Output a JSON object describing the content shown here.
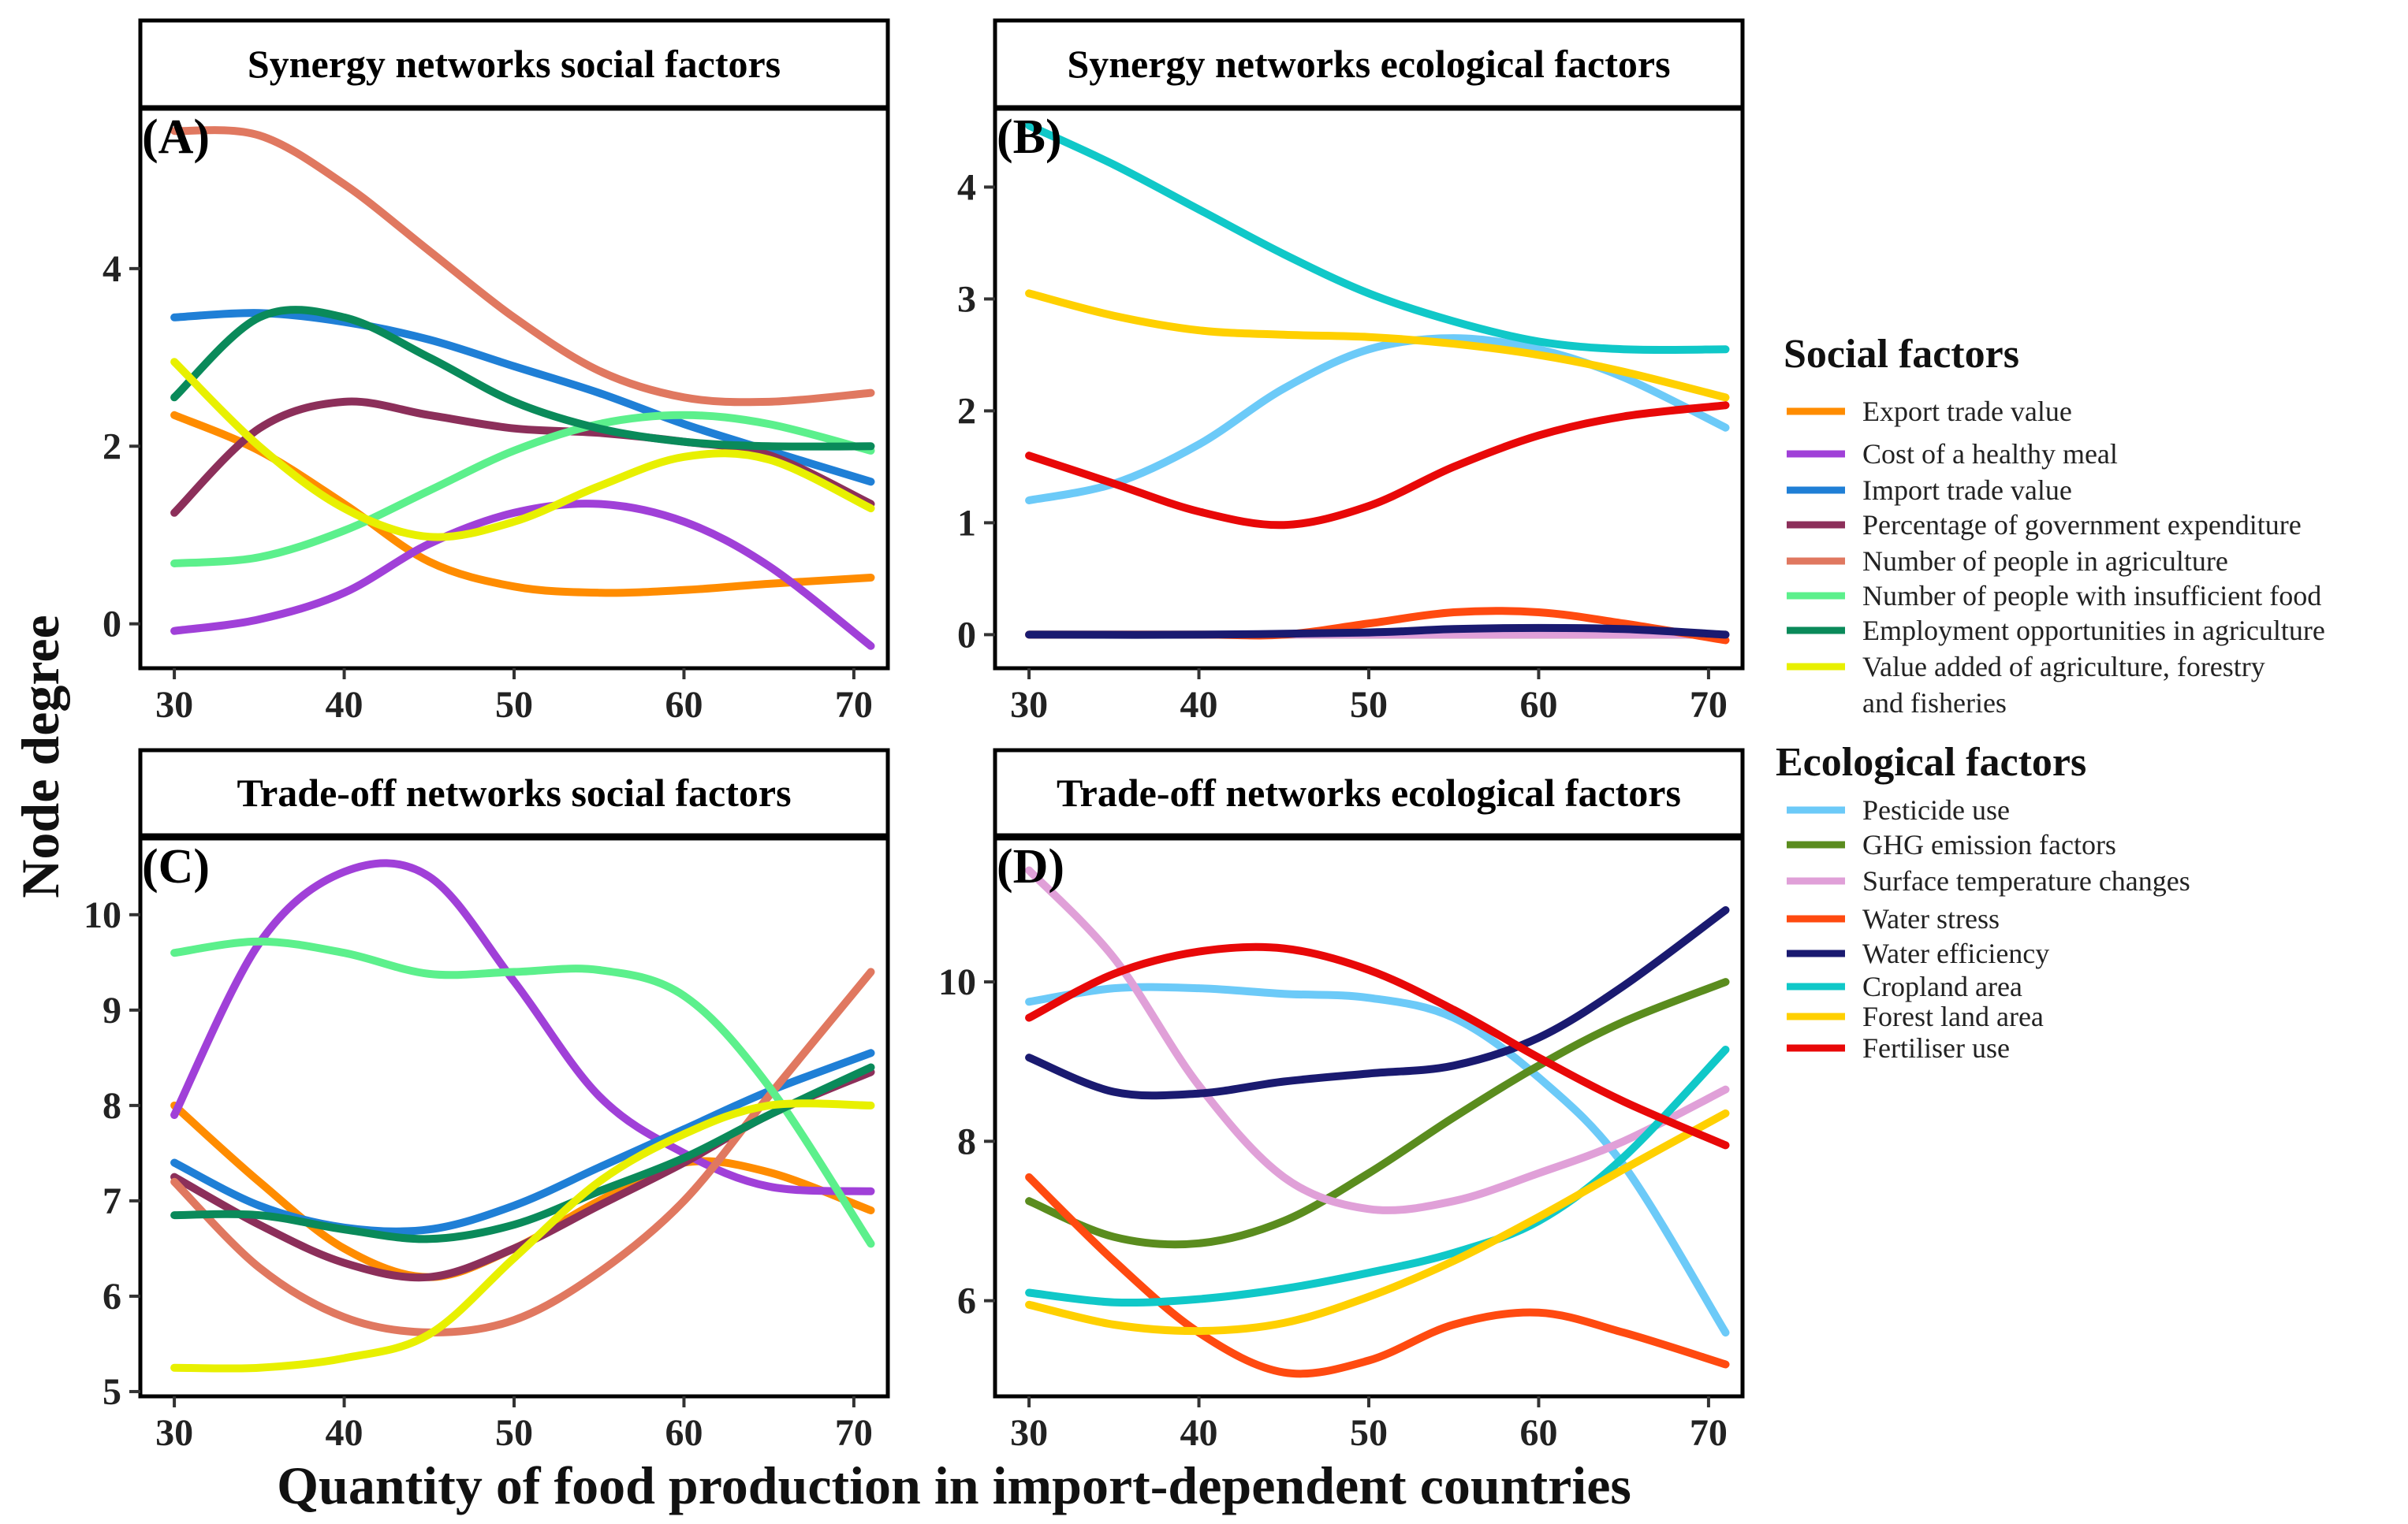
{
  "figure": {
    "xlabel": "Quantity of food production in import-dependent countries",
    "ylabel": "Node degree"
  },
  "legend": {
    "social_title": "Social factors",
    "ecological_title": "Ecological factors",
    "social_items": [
      {
        "label": "Export trade value",
        "color": "#ff8c00"
      },
      {
        "label": "Cost of a healthy meal",
        "color": "#a040d8"
      },
      {
        "label": "Import trade value",
        "color": "#1f7fd6"
      },
      {
        "label": "Percentage of government expenditure",
        "color": "#8c2f5a"
      },
      {
        "label": "Number of people in agriculture",
        "color": "#e07860"
      },
      {
        "label": "Number of people with insufficient food",
        "color": "#5cf08c"
      },
      {
        "label": "Employment opportunities in agriculture",
        "color": "#0a8a5a"
      },
      {
        "label": "Value added of agriculture, forestry",
        "label2": "and fisheries",
        "color": "#e8f000"
      }
    ],
    "ecological_items": [
      {
        "label": "Pesticide use",
        "color": "#6ccaf8"
      },
      {
        "label": "GHG emission factors",
        "color": "#5a8c1e"
      },
      {
        "label": "Surface temperature changes",
        "color": "#e0a0d8"
      },
      {
        "label": "Water stress",
        "color": "#ff4a10"
      },
      {
        "label": "Water efficiency",
        "color": "#1a1a70"
      },
      {
        "label": "Cropland area",
        "color": "#10c8c8"
      },
      {
        "label": "Forest land area",
        "color": "#ffd000"
      },
      {
        "label": "Fertiliser use",
        "color": "#e80808"
      }
    ]
  },
  "chart_data": [
    {
      "type": "line",
      "tag": "(A)",
      "title": "Synergy networks social factors",
      "xlim": [
        28,
        72
      ],
      "ylim": [
        -0.5,
        5.8
      ],
      "xticks": [
        30,
        40,
        50,
        60,
        70
      ],
      "yticks": [
        0,
        2,
        4
      ],
      "series": [
        {
          "name": "Export trade value",
          "color": "#ff8c00",
          "x": [
            30,
            35,
            40,
            45,
            50,
            55,
            60,
            65,
            71
          ],
          "y": [
            2.35,
            1.95,
            1.35,
            0.7,
            0.42,
            0.35,
            0.38,
            0.45,
            0.52
          ]
        },
        {
          "name": "Cost of a healthy meal",
          "color": "#a040d8",
          "x": [
            30,
            35,
            40,
            45,
            50,
            55,
            60,
            65,
            71
          ],
          "y": [
            -0.08,
            0.05,
            0.35,
            0.9,
            1.25,
            1.35,
            1.15,
            0.65,
            -0.25
          ]
        },
        {
          "name": "Import trade value",
          "color": "#1f7fd6",
          "x": [
            30,
            35,
            40,
            45,
            50,
            55,
            60,
            65,
            71
          ],
          "y": [
            3.45,
            3.5,
            3.4,
            3.2,
            2.9,
            2.6,
            2.25,
            1.95,
            1.6
          ]
        },
        {
          "name": "Percentage of government expenditure",
          "color": "#8c2f5a",
          "x": [
            30,
            35,
            40,
            45,
            50,
            55,
            60,
            65,
            71
          ],
          "y": [
            1.25,
            2.2,
            2.5,
            2.35,
            2.2,
            2.15,
            2.05,
            1.9,
            1.35
          ]
        },
        {
          "name": "Number of people in agriculture",
          "color": "#e07860",
          "x": [
            30,
            35,
            40,
            45,
            50,
            55,
            60,
            65,
            71
          ],
          "y": [
            5.55,
            5.5,
            4.95,
            4.2,
            3.45,
            2.85,
            2.55,
            2.5,
            2.6
          ]
        },
        {
          "name": "Number of people with insufficient food",
          "color": "#5cf08c",
          "x": [
            30,
            35,
            40,
            45,
            50,
            55,
            60,
            65,
            71
          ],
          "y": [
            0.68,
            0.75,
            1.05,
            1.5,
            1.95,
            2.25,
            2.35,
            2.25,
            1.95
          ]
        },
        {
          "name": "Employment opportunities in agriculture",
          "color": "#0a8a5a",
          "x": [
            30,
            35,
            40,
            45,
            50,
            55,
            60,
            65,
            71
          ],
          "y": [
            2.55,
            3.45,
            3.45,
            3.0,
            2.5,
            2.2,
            2.05,
            2.0,
            2.0
          ]
        },
        {
          "name": "Value added of agriculture, forestry and fisheries",
          "color": "#e8f000",
          "x": [
            30,
            35,
            40,
            45,
            50,
            55,
            60,
            65,
            71
          ],
          "y": [
            2.95,
            2.0,
            1.3,
            0.98,
            1.15,
            1.55,
            1.88,
            1.85,
            1.3
          ]
        }
      ]
    },
    {
      "type": "line",
      "tag": "(B)",
      "title": "Synergy networks ecological factors",
      "xlim": [
        28,
        72
      ],
      "ylim": [
        -0.3,
        4.7
      ],
      "xticks": [
        30,
        40,
        50,
        60,
        70
      ],
      "yticks": [
        0,
        1,
        2,
        3,
        4
      ],
      "series": [
        {
          "name": "Pesticide use",
          "color": "#6ccaf8",
          "x": [
            30,
            35,
            40,
            45,
            50,
            55,
            60,
            65,
            71
          ],
          "y": [
            1.2,
            1.35,
            1.7,
            2.2,
            2.55,
            2.65,
            2.55,
            2.3,
            1.85
          ]
        },
        {
          "name": "GHG emission factors",
          "color": "#5a8c1e",
          "x": [
            30,
            40,
            50,
            60,
            71
          ],
          "y": [
            0,
            0,
            0,
            0,
            0
          ]
        },
        {
          "name": "Surface temperature changes",
          "color": "#e0a0d8",
          "x": [
            30,
            40,
            50,
            60,
            71
          ],
          "y": [
            0,
            0,
            0,
            0,
            0
          ]
        },
        {
          "name": "Water stress",
          "color": "#ff4a10",
          "x": [
            30,
            40,
            45,
            50,
            55,
            60,
            65,
            71
          ],
          "y": [
            0,
            0,
            0,
            0.1,
            0.2,
            0.2,
            0.1,
            -0.05
          ]
        },
        {
          "name": "Water efficiency",
          "color": "#1a1a70",
          "x": [
            30,
            40,
            50,
            55,
            60,
            65,
            71
          ],
          "y": [
            0,
            0,
            0.02,
            0.05,
            0.06,
            0.05,
            0.0
          ]
        },
        {
          "name": "Cropland area",
          "color": "#10c8c8",
          "x": [
            30,
            35,
            40,
            45,
            50,
            55,
            60,
            65,
            71
          ],
          "y": [
            4.55,
            4.2,
            3.8,
            3.4,
            3.05,
            2.8,
            2.62,
            2.55,
            2.55
          ]
        },
        {
          "name": "Forest land area",
          "color": "#ffd000",
          "x": [
            30,
            35,
            40,
            45,
            50,
            55,
            60,
            65,
            71
          ],
          "y": [
            3.05,
            2.85,
            2.72,
            2.68,
            2.66,
            2.6,
            2.5,
            2.35,
            2.12
          ]
        },
        {
          "name": "Fertiliser use",
          "color": "#e80808",
          "x": [
            30,
            35,
            40,
            45,
            50,
            55,
            60,
            65,
            71
          ],
          "y": [
            1.6,
            1.35,
            1.1,
            0.98,
            1.15,
            1.5,
            1.78,
            1.95,
            2.05
          ]
        }
      ]
    },
    {
      "type": "line",
      "tag": "(C)",
      "title": "Trade-off networks social factors",
      "xlim": [
        28,
        72
      ],
      "ylim": [
        4.95,
        10.8
      ],
      "xticks": [
        30,
        40,
        50,
        60,
        70
      ],
      "yticks": [
        5,
        6,
        7,
        8,
        9,
        10
      ],
      "series": [
        {
          "name": "Export trade value",
          "color": "#ff8c00",
          "x": [
            30,
            35,
            40,
            45,
            50,
            55,
            60,
            65,
            71
          ],
          "y": [
            8.0,
            7.2,
            6.5,
            6.2,
            6.5,
            7.0,
            7.4,
            7.3,
            6.9
          ]
        },
        {
          "name": "Cost of a healthy meal",
          "color": "#a040d8",
          "x": [
            30,
            35,
            40,
            45,
            50,
            55,
            60,
            65,
            71
          ],
          "y": [
            7.9,
            9.7,
            10.45,
            10.4,
            9.3,
            8.1,
            7.5,
            7.15,
            7.1
          ]
        },
        {
          "name": "Import trade value",
          "color": "#1f7fd6",
          "x": [
            30,
            35,
            40,
            45,
            50,
            55,
            60,
            65,
            71
          ],
          "y": [
            7.4,
            6.95,
            6.72,
            6.7,
            6.95,
            7.35,
            7.75,
            8.15,
            8.55
          ]
        },
        {
          "name": "Percentage of government expenditure",
          "color": "#8c2f5a",
          "x": [
            30,
            35,
            40,
            45,
            50,
            55,
            60,
            65,
            71
          ],
          "y": [
            7.25,
            6.75,
            6.35,
            6.2,
            6.5,
            6.95,
            7.4,
            7.9,
            8.35
          ]
        },
        {
          "name": "Number of people in agriculture",
          "color": "#e07860",
          "x": [
            30,
            35,
            40,
            45,
            50,
            55,
            60,
            65,
            71
          ],
          "y": [
            7.2,
            6.3,
            5.78,
            5.62,
            5.75,
            6.25,
            7.0,
            8.1,
            9.4
          ]
        },
        {
          "name": "Number of people with insufficient food",
          "color": "#5cf08c",
          "x": [
            30,
            35,
            40,
            45,
            50,
            55,
            60,
            65,
            71
          ],
          "y": [
            9.6,
            9.72,
            9.6,
            9.38,
            9.4,
            9.42,
            9.15,
            8.2,
            6.55
          ]
        },
        {
          "name": "Employment opportunities in agriculture",
          "color": "#0a8a5a",
          "x": [
            30,
            35,
            40,
            45,
            50,
            55,
            60,
            65,
            71
          ],
          "y": [
            6.85,
            6.85,
            6.7,
            6.6,
            6.75,
            7.1,
            7.45,
            7.9,
            8.4
          ]
        },
        {
          "name": "Value added of agriculture, forestry and fisheries",
          "color": "#e8f000",
          "x": [
            30,
            35,
            40,
            45,
            50,
            55,
            60,
            65,
            71
          ],
          "y": [
            5.25,
            5.25,
            5.35,
            5.6,
            6.4,
            7.2,
            7.7,
            8.0,
            8.0
          ]
        }
      ]
    },
    {
      "type": "line",
      "tag": "(D)",
      "title": "Trade-off networks ecological factors",
      "xlim": [
        28,
        72
      ],
      "ylim": [
        4.8,
        11.8
      ],
      "xticks": [
        30,
        40,
        50,
        60,
        70
      ],
      "yticks": [
        6,
        8,
        10
      ],
      "series": [
        {
          "name": "Pesticide use",
          "color": "#6ccaf8",
          "x": [
            30,
            35,
            40,
            45,
            50,
            55,
            60,
            65,
            71
          ],
          "y": [
            9.75,
            9.92,
            9.92,
            9.85,
            9.8,
            9.55,
            8.8,
            7.7,
            5.6
          ]
        },
        {
          "name": "GHG emission factors",
          "color": "#5a8c1e",
          "x": [
            30,
            35,
            40,
            45,
            50,
            55,
            60,
            65,
            71
          ],
          "y": [
            7.25,
            6.8,
            6.72,
            7.0,
            7.6,
            8.3,
            8.95,
            9.5,
            10.0
          ]
        },
        {
          "name": "Surface temperature changes",
          "color": "#e0a0d8",
          "x": [
            30,
            35,
            40,
            45,
            50,
            55,
            60,
            65,
            71
          ],
          "y": [
            11.4,
            10.3,
            8.7,
            7.55,
            7.15,
            7.25,
            7.6,
            8.0,
            8.65
          ]
        },
        {
          "name": "Water stress",
          "color": "#ff4a10",
          "x": [
            30,
            35,
            40,
            45,
            50,
            55,
            60,
            65,
            71
          ],
          "y": [
            7.55,
            6.5,
            5.6,
            5.1,
            5.25,
            5.7,
            5.85,
            5.6,
            5.2
          ]
        },
        {
          "name": "Water efficiency",
          "color": "#1a1a70",
          "x": [
            30,
            35,
            40,
            45,
            50,
            55,
            60,
            65,
            71
          ],
          "y": [
            9.05,
            8.62,
            8.6,
            8.75,
            8.85,
            8.95,
            9.3,
            9.95,
            10.9
          ]
        },
        {
          "name": "Cropland area",
          "color": "#10c8c8",
          "x": [
            30,
            35,
            40,
            45,
            50,
            55,
            60,
            65,
            71
          ],
          "y": [
            6.1,
            5.98,
            6.02,
            6.15,
            6.35,
            6.6,
            7.0,
            7.8,
            9.15
          ]
        },
        {
          "name": "Forest land area",
          "color": "#ffd000",
          "x": [
            30,
            35,
            40,
            45,
            50,
            55,
            60,
            65,
            71
          ],
          "y": [
            5.95,
            5.7,
            5.62,
            5.72,
            6.05,
            6.5,
            7.05,
            7.65,
            8.35
          ]
        },
        {
          "name": "Fertiliser use",
          "color": "#e80808",
          "x": [
            30,
            35,
            40,
            45,
            50,
            55,
            60,
            65,
            71
          ],
          "y": [
            9.55,
            10.1,
            10.38,
            10.42,
            10.15,
            9.65,
            9.05,
            8.5,
            7.95
          ]
        }
      ]
    }
  ]
}
